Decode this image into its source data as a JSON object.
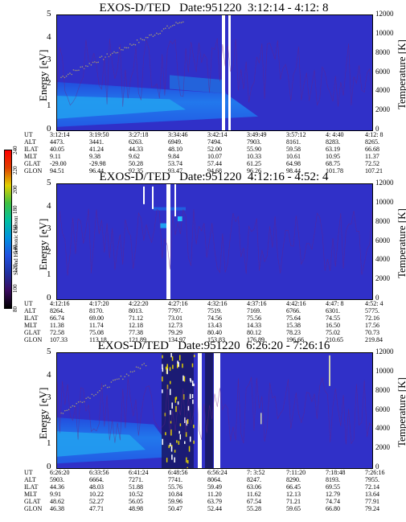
{
  "colorbar": {
    "label": "Second Harmonic Current",
    "ticks": [
      "80",
      "100",
      "120",
      "140",
      "160",
      "180",
      "200",
      "220",
      "240"
    ],
    "colors": [
      "#000000",
      "#3a0b5e",
      "#2030a0",
      "#2050e0",
      "#0090e0",
      "#00c0a0",
      "#40c040",
      "#e0d000",
      "#e04000",
      "#ff0000"
    ]
  },
  "chart_data": [
    {
      "type": "heatmap",
      "title": "EXOS-D/TED   Date:951220  3:12:14 - 4:12: 8",
      "ylabel": "Energy [eV]",
      "y2label": "Temperature [K]",
      "ylim": [
        0,
        5
      ],
      "y2lim": [
        0,
        12000
      ],
      "yticks": [
        "0",
        "1",
        "2",
        "3",
        "4",
        "5"
      ],
      "y2ticks": [
        "0",
        "2000",
        "4000",
        "6000",
        "8000",
        "10000",
        "12000"
      ],
      "ephemeris": {
        "labels": [
          "UT",
          "ALT",
          "ILAT",
          "MLT",
          "GLAT",
          "GLON"
        ],
        "columns": [
          [
            "3:12:14",
            "4473.",
            "40.05",
            "9.11",
            "-29.00",
            "94.51"
          ],
          [
            "3:19:50",
            "3441.",
            "41.24",
            "9.38",
            "-29.98",
            "96.44"
          ],
          [
            "3:27:18",
            "6263.",
            "44.33",
            "9.62",
            "50.28",
            "92.35"
          ],
          [
            "3:34:46",
            "6949.",
            "48.10",
            "9.84",
            "53.74",
            "93.47"
          ],
          [
            "3:42:14",
            "7494.",
            "52.00",
            "10.07",
            "57.44",
            "94.68"
          ],
          [
            "3:49:49",
            "7903.",
            "55.90",
            "10.33",
            "61.25",
            "96.26"
          ],
          [
            "3:57:12",
            "8161.",
            "59.58",
            "10.61",
            "64.98",
            "98.44"
          ],
          [
            "4: 4:40",
            "8283.",
            "63.19",
            "10.95",
            "68.75",
            "101.78"
          ],
          [
            "4:12: 8",
            "8265.",
            "66.68",
            "11.37",
            "72.52",
            "107.21"
          ]
        ]
      }
    },
    {
      "type": "heatmap",
      "title": "EXOS-D/TED   Date:951220  4:12:16 - 4:52: 4",
      "ylabel": "Energy [eV]",
      "y2label": "Temperature [K]",
      "ylim": [
        0,
        5
      ],
      "y2lim": [
        0,
        12000
      ],
      "yticks": [
        "0",
        "1",
        "2",
        "3",
        "4",
        "5"
      ],
      "y2ticks": [
        "0",
        "2000",
        "4000",
        "6000",
        "8000",
        "10000",
        "12000"
      ],
      "ephemeris": {
        "labels": [
          "UT",
          "ALT",
          "ILAT",
          "MLT",
          "GLAT",
          "GLON"
        ],
        "columns": [
          [
            "4:12:16",
            "8264.",
            "66.74",
            "11.38",
            "72.58",
            "107.33"
          ],
          [
            "4:17:20",
            "8170.",
            "69.00",
            "11.74",
            "75.08",
            "113.18"
          ],
          [
            "4:22:20",
            "8013.",
            "71.12",
            "12.18",
            "77.38",
            "121.89"
          ],
          [
            "4:27:16",
            "7797.",
            "73.01",
            "12.73",
            "79.29",
            "134.97"
          ],
          [
            "4:32:16",
            "7519.",
            "74.56",
            "13.43",
            "80.40",
            "153.83"
          ],
          [
            "4:37:16",
            "7169.",
            "75.56",
            "14.33",
            "80.12",
            "176.89"
          ],
          [
            "4:42:16",
            "6766.",
            "75.64",
            "15.38",
            "78.23",
            "196.66"
          ],
          [
            "4:47: 8",
            "6301.",
            "74.55",
            "16.50",
            "75.02",
            "210.65"
          ],
          [
            "4:52: 4",
            "5775.",
            "72.16",
            "17.56",
            "70.73",
            "219.84"
          ]
        ]
      }
    },
    {
      "type": "heatmap",
      "title": "EXOS-D/TED   Date:951220  6:26:20 - 7:26:16",
      "ylabel": "Energy [eV]",
      "y2label": "Temperature [K]",
      "ylim": [
        0,
        5
      ],
      "y2lim": [
        0,
        12000
      ],
      "yticks": [
        "0",
        "1",
        "2",
        "3",
        "4",
        "5"
      ],
      "y2ticks": [
        "0",
        "2000",
        "4000",
        "6000",
        "8000",
        "10000",
        "12000"
      ],
      "ephemeris": {
        "labels": [
          "UT",
          "ALT",
          "ILAT",
          "MLT",
          "GLAT",
          "GLON"
        ],
        "columns": [
          [
            "6:26:20",
            "5903.",
            "44.36",
            "9.91",
            "48.62",
            "46.38"
          ],
          [
            "6:33:56",
            "6664.",
            "48.03",
            "10.22",
            "52.27",
            "47.71"
          ],
          [
            "6:41:24",
            "7271.",
            "51.88",
            "10.52",
            "56.05",
            "48.98"
          ],
          [
            "6:48:56",
            "7741.",
            "55.76",
            "10.84",
            "59.96",
            "50.47"
          ],
          [
            "6:56:24",
            "8064.",
            "59.49",
            "11.20",
            "63.79",
            "52.44"
          ],
          [
            "7: 3:52",
            "8247.",
            "63.06",
            "11.62",
            "67.54",
            "55.28"
          ],
          [
            "7:11:20",
            "8290.",
            "66.45",
            "12.13",
            "71.21",
            "59.65"
          ],
          [
            "7:18:48",
            "8193.",
            "69.55",
            "12.79",
            "74.74",
            "66.80"
          ],
          [
            "7:26:16",
            "7955.",
            "72.14",
            "13.64",
            "77.91",
            "79.24"
          ]
        ]
      }
    }
  ]
}
